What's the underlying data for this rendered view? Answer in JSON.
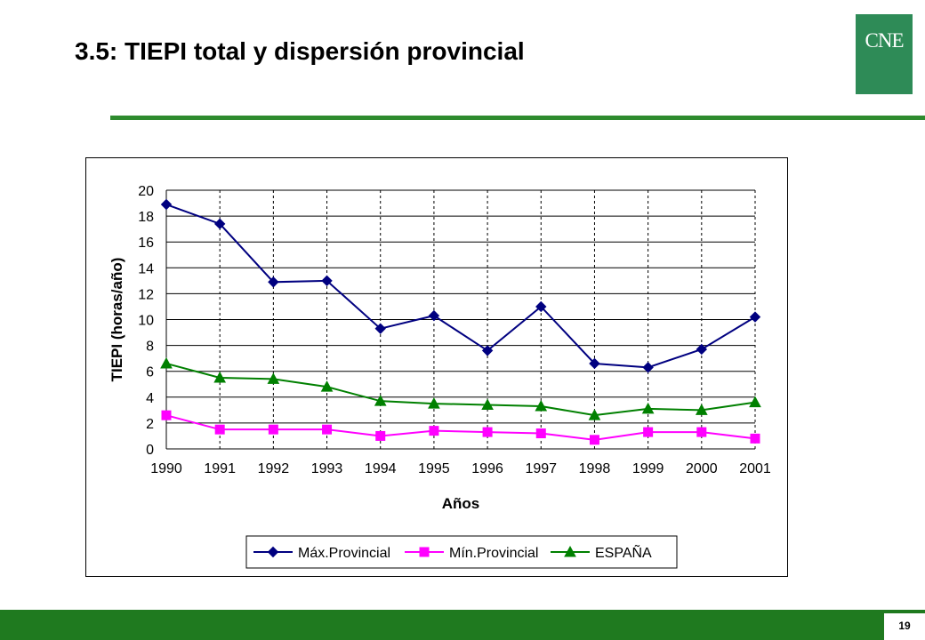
{
  "slide": {
    "title": "3.5: TIEPI total y dispersión provincial",
    "logo_text": "CNE",
    "page_number": "19"
  },
  "colors": {
    "accent_green": "#2e8b2e",
    "footer_green": "#1f7a1f",
    "logo_green": "#2e8b57"
  },
  "chart_data": {
    "type": "line",
    "title": "",
    "xlabel": "Años",
    "ylabel": "TIEPI (horas/año)",
    "categories": [
      "1990",
      "1991",
      "1992",
      "1993",
      "1994",
      "1995",
      "1996",
      "1997",
      "1998",
      "1999",
      "2000",
      "2001"
    ],
    "ylim": [
      0,
      20
    ],
    "yticks": [
      0,
      2,
      4,
      6,
      8,
      10,
      12,
      14,
      16,
      18,
      20
    ],
    "grid": {
      "horizontal": "solid",
      "vertical": "dashed"
    },
    "legend_position": "bottom",
    "series": [
      {
        "name": "Máx.Provincial",
        "color": "#000080",
        "marker": "diamond",
        "values": [
          18.9,
          17.4,
          12.9,
          13.0,
          9.3,
          10.3,
          7.6,
          11.0,
          6.6,
          6.3,
          7.7,
          10.2
        ]
      },
      {
        "name": "Mín.Provincial",
        "color": "#ff00ff",
        "marker": "square",
        "values": [
          2.6,
          1.5,
          1.5,
          1.5,
          1.0,
          1.4,
          1.3,
          1.2,
          0.7,
          1.3,
          1.3,
          0.8
        ]
      },
      {
        "name": "ESPAÑA",
        "color": "#008000",
        "marker": "triangle",
        "values": [
          6.6,
          5.5,
          5.4,
          4.8,
          3.7,
          3.5,
          3.4,
          3.3,
          2.6,
          3.1,
          3.0,
          3.6
        ]
      }
    ]
  }
}
